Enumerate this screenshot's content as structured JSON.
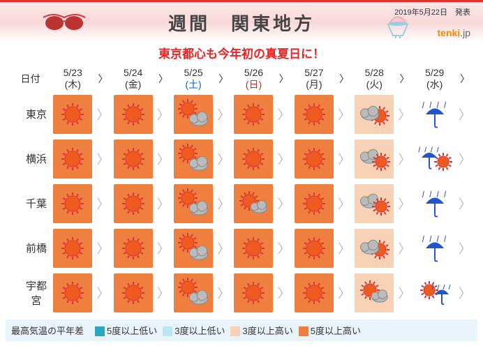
{
  "header": {
    "title": "週間　関東地方",
    "pubdate": "2019年5月22日　発表",
    "brand_prefix": "tenki",
    "brand_suffix": ".jp",
    "subtitle": "東京都心も今年初の真夏日に！"
  },
  "dayhead_label": "日付",
  "days": [
    {
      "date": "5/23",
      "dow": "(木)",
      "cls": ""
    },
    {
      "date": "5/24",
      "dow": "(金)",
      "cls": ""
    },
    {
      "date": "5/25",
      "dow": "(土)",
      "cls": "dowsat"
    },
    {
      "date": "5/26",
      "dow": "(日)",
      "cls": "dowsun"
    },
    {
      "date": "5/27",
      "dow": "(月)",
      "cls": ""
    },
    {
      "date": "5/28",
      "dow": "(火)",
      "cls": ""
    },
    {
      "date": "5/29",
      "dow": "(水)",
      "cls": ""
    }
  ],
  "cities": [
    "東京",
    "横浜",
    "千葉",
    "前橋",
    "宇都宮"
  ],
  "grid": [
    [
      {
        "bg": "hot5",
        "ic": "sun"
      },
      {
        "bg": "hot5",
        "ic": "sun"
      },
      {
        "bg": "hot5",
        "ic": "sun_to_cloud"
      },
      {
        "bg": "hot5",
        "ic": "sun"
      },
      {
        "bg": "hot5",
        "ic": "sun"
      },
      {
        "bg": "hot3",
        "ic": "cloud_behind_sun"
      },
      {
        "bg": "none",
        "ic": "rain"
      }
    ],
    [
      {
        "bg": "hot5",
        "ic": "sun"
      },
      {
        "bg": "hot5",
        "ic": "sun"
      },
      {
        "bg": "hot5",
        "ic": "sun_to_cloud"
      },
      {
        "bg": "hot5",
        "ic": "sun"
      },
      {
        "bg": "hot5",
        "ic": "sun"
      },
      {
        "bg": "hot3",
        "ic": "cloud_sun"
      },
      {
        "bg": "none",
        "ic": "rain_sun"
      }
    ],
    [
      {
        "bg": "hot5",
        "ic": "sun"
      },
      {
        "bg": "hot5",
        "ic": "sun"
      },
      {
        "bg": "hot5",
        "ic": "sun_to_cloud"
      },
      {
        "bg": "hot5",
        "ic": "sun_cloud"
      },
      {
        "bg": "hot5",
        "ic": "sun"
      },
      {
        "bg": "hot3",
        "ic": "cloud_sun"
      },
      {
        "bg": "none",
        "ic": "rain"
      }
    ],
    [
      {
        "bg": "hot5",
        "ic": "sun"
      },
      {
        "bg": "hot5",
        "ic": "sun"
      },
      {
        "bg": "hot5",
        "ic": "sun_to_cloud"
      },
      {
        "bg": "hot5",
        "ic": "sun"
      },
      {
        "bg": "hot5",
        "ic": "sun"
      },
      {
        "bg": "hot3",
        "ic": "cloud_behind_sun"
      },
      {
        "bg": "none",
        "ic": "rain"
      }
    ],
    [
      {
        "bg": "hot5",
        "ic": "sun"
      },
      {
        "bg": "hot5",
        "ic": "sun"
      },
      {
        "bg": "hot5",
        "ic": "sun_to_cloud"
      },
      {
        "bg": "hot5",
        "ic": "sun"
      },
      {
        "bg": "hot5",
        "ic": "sun"
      },
      {
        "bg": "hot3",
        "ic": "sun_cloud"
      },
      {
        "bg": "none",
        "ic": "sun_rain"
      }
    ]
  ],
  "legend": {
    "title": "最高気温の平年差",
    "items": [
      {
        "cls": "sw-l5",
        "label": "5度以上低い"
      },
      {
        "cls": "sw-l3",
        "label": "3度以上低い"
      },
      {
        "cls": "sw-h3",
        "label": "3度以上高い"
      },
      {
        "cls": "sw-h5",
        "label": "5度以上高い"
      }
    ]
  },
  "colors": {
    "sun_fill": "#ee5a1f",
    "sun_stroke": "#d33",
    "cloud_fill": "#bbb",
    "cloud_stroke": "#888",
    "umbrella": "#2256c9"
  }
}
